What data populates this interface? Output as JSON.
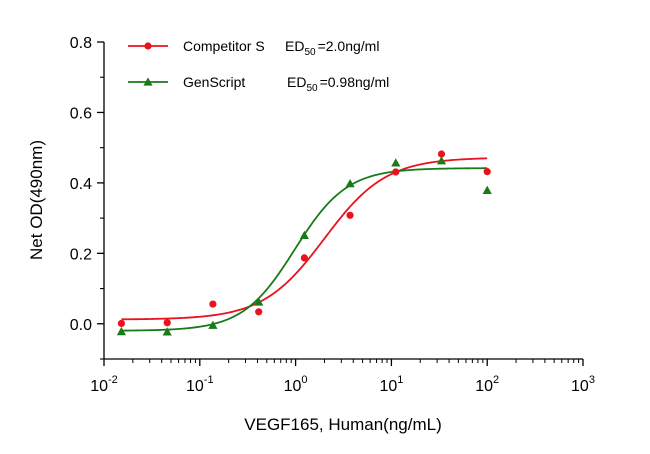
{
  "chart_data": {
    "type": "scatter",
    "xlabel": "VEGF165, Human(ng/mL)",
    "ylabel": "Net OD(490nm)",
    "xscale": "log",
    "xlim": [
      0.01,
      1000
    ],
    "ylim": [
      -0.1,
      0.8
    ],
    "grid": false,
    "legend_position": "top-left",
    "x_ticks": [
      {
        "base": "10",
        "exp": "-2",
        "value": 0.01
      },
      {
        "base": "10",
        "exp": "-1",
        "value": 0.1
      },
      {
        "base": "10",
        "exp": "0",
        "value": 1
      },
      {
        "base": "10",
        "exp": "1",
        "value": 10
      },
      {
        "base": "10",
        "exp": "2",
        "value": 100
      },
      {
        "base": "10",
        "exp": "3",
        "value": 1000
      }
    ],
    "y_ticks": [
      {
        "label": "0.0",
        "value": 0.0
      },
      {
        "label": "0.2",
        "value": 0.2
      },
      {
        "label": "0.4",
        "value": 0.4
      },
      {
        "label": "0.6",
        "value": 0.6
      },
      {
        "label": "0.8",
        "value": 0.8
      }
    ],
    "series": [
      {
        "name": "Competitor S",
        "legend": {
          "name": "Competitor S",
          "ed_prefix": "ED",
          "ed_sub": "50",
          "ed_value": "=2.0ng/ml"
        },
        "color": "#e8131d",
        "marker": "circle",
        "x": [
          0.0152,
          0.0457,
          0.137,
          0.412,
          1.235,
          3.704,
          11.11,
          33.33,
          100
        ],
        "y": [
          0.001,
          0.003,
          0.056,
          0.034,
          0.187,
          0.308,
          0.431,
          0.482,
          0.432
        ],
        "fit": {
          "bottom": 0.012,
          "top": 0.472,
          "ec50": 2.0,
          "hill": 1.35
        }
      },
      {
        "name": "GenScript",
        "legend": {
          "name": "GenScript",
          "ed_prefix": "ED",
          "ed_sub": "50",
          "ed_value": "=0.98ng/ml"
        },
        "color": "#1a7a1a",
        "marker": "triangle",
        "x": [
          0.0152,
          0.0457,
          0.137,
          0.412,
          1.235,
          3.704,
          11.11,
          33.33,
          100
        ],
        "y": [
          -0.022,
          -0.023,
          -0.004,
          0.062,
          0.251,
          0.398,
          0.457,
          0.463,
          0.379
        ],
        "fit": {
          "bottom": -0.02,
          "top": 0.442,
          "ec50": 0.98,
          "hill": 1.6
        }
      }
    ]
  }
}
